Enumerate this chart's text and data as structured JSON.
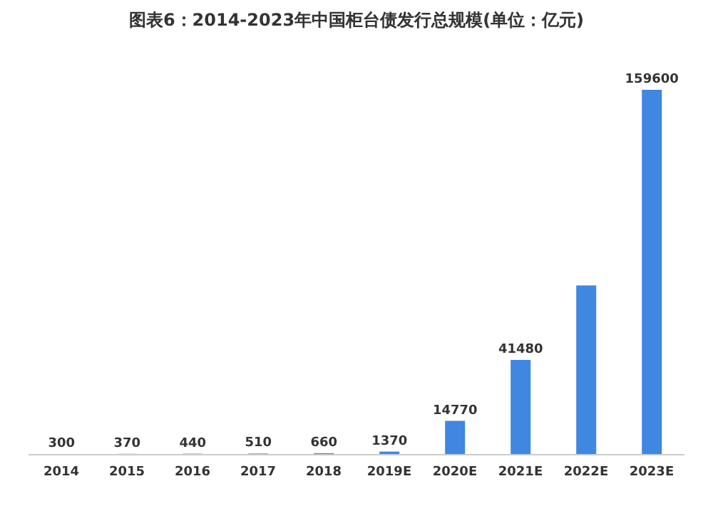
{
  "chart_data": {
    "type": "bar",
    "title": "图表6：2014-2023年中国柜台债发行总规模(单位：亿元)",
    "categories": [
      "2014",
      "2015",
      "2016",
      "2017",
      "2018",
      "2019E",
      "2020E",
      "2021E",
      "2022E",
      "2023E"
    ],
    "values": [
      300,
      370,
      440,
      510,
      660,
      1370,
      14770,
      41480,
      74000,
      159600
    ],
    "value_labels": [
      "300",
      "370",
      "440",
      "510",
      "660",
      "1370",
      "14770",
      "41480",
      null,
      "159600"
    ],
    "color": "#3f87e0"
  }
}
